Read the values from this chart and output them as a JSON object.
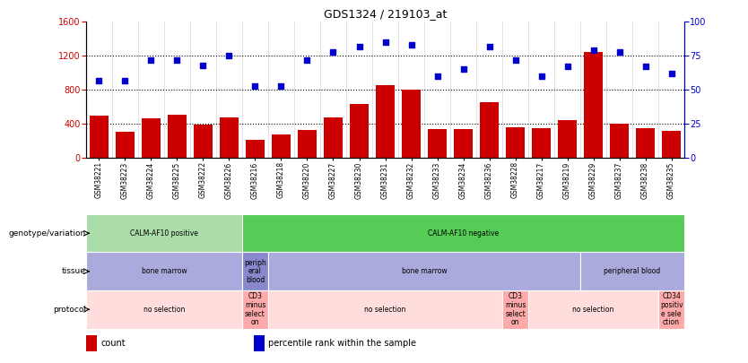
{
  "title": "GDS1324 / 219103_at",
  "samples": [
    "GSM38221",
    "GSM38223",
    "GSM38224",
    "GSM38225",
    "GSM38222",
    "GSM38226",
    "GSM38216",
    "GSM38218",
    "GSM38220",
    "GSM38227",
    "GSM38230",
    "GSM38231",
    "GSM38232",
    "GSM38233",
    "GSM38234",
    "GSM38236",
    "GSM38228",
    "GSM38217",
    "GSM38219",
    "GSM38229",
    "GSM38237",
    "GSM38238",
    "GSM38235"
  ],
  "counts": [
    500,
    310,
    470,
    510,
    390,
    480,
    210,
    280,
    330,
    480,
    630,
    850,
    800,
    340,
    340,
    660,
    360,
    350,
    440,
    1240,
    400,
    350,
    320
  ],
  "percentiles": [
    57,
    57,
    72,
    72,
    68,
    75,
    53,
    53,
    72,
    78,
    82,
    85,
    83,
    60,
    65,
    82,
    72,
    60,
    67,
    79,
    78,
    67,
    62
  ],
  "bar_color": "#cc0000",
  "dot_color": "#0000cc",
  "ylim_left": [
    0,
    1600
  ],
  "ylim_right": [
    0,
    100
  ],
  "yticks_left": [
    0,
    400,
    800,
    1200,
    1600
  ],
  "yticks_right": [
    0,
    25,
    50,
    75,
    100
  ],
  "genotype_row": {
    "label": "genotype/variation",
    "segments": [
      {
        "text": "CALM-AF10 positive",
        "start": 0,
        "end": 6,
        "color": "#aaddaa"
      },
      {
        "text": "CALM-AF10 negative",
        "start": 6,
        "end": 23,
        "color": "#55cc55"
      }
    ]
  },
  "tissue_row": {
    "label": "tissue",
    "segments": [
      {
        "text": "bone marrow",
        "start": 0,
        "end": 6,
        "color": "#aaaadd"
      },
      {
        "text": "periph\neral\nblood",
        "start": 6,
        "end": 7,
        "color": "#8888cc"
      },
      {
        "text": "bone marrow",
        "start": 7,
        "end": 19,
        "color": "#aaaadd"
      },
      {
        "text": "peripheral blood",
        "start": 19,
        "end": 23,
        "color": "#aaaadd"
      }
    ]
  },
  "protocol_row": {
    "label": "protocol",
    "segments": [
      {
        "text": "no selection",
        "start": 0,
        "end": 6,
        "color": "#ffdddd"
      },
      {
        "text": "CD3\nminus\nselect\non",
        "start": 6,
        "end": 7,
        "color": "#ffaaaa"
      },
      {
        "text": "no selection",
        "start": 7,
        "end": 16,
        "color": "#ffdddd"
      },
      {
        "text": "CD3\nminus\nselect\non",
        "start": 16,
        "end": 17,
        "color": "#ffaaaa"
      },
      {
        "text": "no selection",
        "start": 17,
        "end": 22,
        "color": "#ffdddd"
      },
      {
        "text": "CD34\npositiv\ne sele\nction",
        "start": 22,
        "end": 23,
        "color": "#ffaaaa"
      }
    ]
  },
  "legend_items": [
    {
      "color": "#cc0000",
      "label": "count"
    },
    {
      "color": "#0000cc",
      "label": "percentile rank within the sample"
    }
  ]
}
